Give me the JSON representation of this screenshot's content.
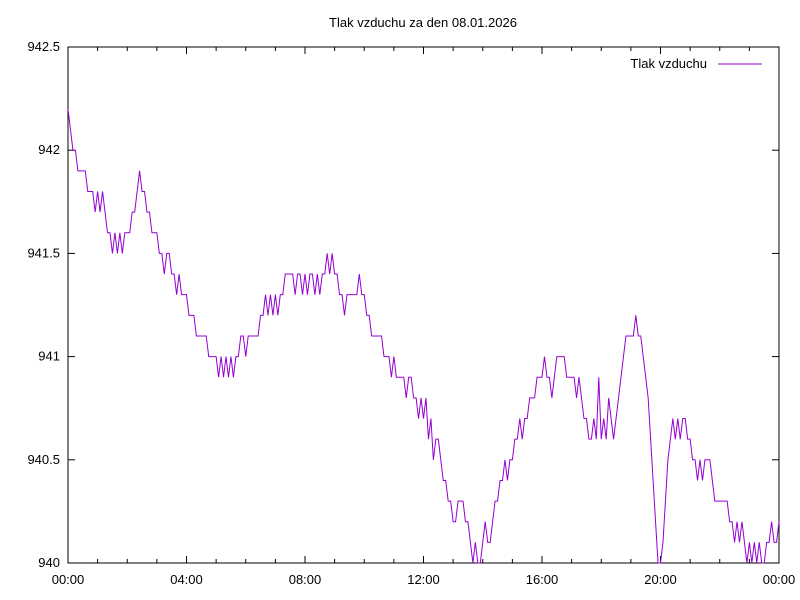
{
  "title": "Tlak vzduchu za den 08.01.2026",
  "legend": {
    "label": "Tlak vzduchu"
  },
  "colors": {
    "line": "#9400d3",
    "axis": "#000000",
    "text": "#000000",
    "background": "#ffffff"
  },
  "chart_data": {
    "type": "line",
    "title": "Tlak vzduchu za den 08.01.2026",
    "series_name": "Tlak vzduchu",
    "xlabel": "",
    "ylabel": "",
    "x_unit": "time-of-day",
    "x_start": "00:00",
    "x_step_minutes": 5,
    "xlim_minutes": [
      0,
      1440
    ],
    "ylim": [
      940,
      942.5
    ],
    "x_tick_labels": [
      "00:00",
      "04:00",
      "08:00",
      "12:00",
      "16:00",
      "20:00",
      "00:00"
    ],
    "x_major_tick_every_minutes": 240,
    "x_minor_tick_every_minutes": 60,
    "y_tick_labels": [
      "940",
      "940.5",
      "941",
      "941.5",
      "942",
      "942.5"
    ],
    "y_tick_step": 0.5,
    "grid": false,
    "legend_position": "top-right-inside",
    "values": [
      942.2,
      942.1,
      942.0,
      942.0,
      941.9,
      941.9,
      941.9,
      941.9,
      941.8,
      941.8,
      941.8,
      941.7,
      941.8,
      941.7,
      941.8,
      941.7,
      941.6,
      941.6,
      941.5,
      941.6,
      941.5,
      941.6,
      941.5,
      941.6,
      941.6,
      941.6,
      941.7,
      941.7,
      941.8,
      941.9,
      941.8,
      941.8,
      941.7,
      941.7,
      941.6,
      941.6,
      941.6,
      941.5,
      941.5,
      941.4,
      941.5,
      941.5,
      941.4,
      941.4,
      941.3,
      941.4,
      941.3,
      941.3,
      941.3,
      941.2,
      941.2,
      941.2,
      941.1,
      941.1,
      941.1,
      941.1,
      941.1,
      941.0,
      941.0,
      941.0,
      941.0,
      940.9,
      941.0,
      940.9,
      941.0,
      940.9,
      941.0,
      940.9,
      941.0,
      941.0,
      941.1,
      941.1,
      941.0,
      941.1,
      941.1,
      941.1,
      941.1,
      941.1,
      941.2,
      941.2,
      941.3,
      941.2,
      941.3,
      941.2,
      941.3,
      941.2,
      941.3,
      941.3,
      941.4,
      941.4,
      941.4,
      941.4,
      941.3,
      941.4,
      941.4,
      941.3,
      941.4,
      941.3,
      941.4,
      941.4,
      941.3,
      941.4,
      941.3,
      941.4,
      941.4,
      941.5,
      941.4,
      941.5,
      941.4,
      941.4,
      941.3,
      941.3,
      941.2,
      941.3,
      941.3,
      941.3,
      941.3,
      941.3,
      941.4,
      941.3,
      941.3,
      941.2,
      941.2,
      941.1,
      941.1,
      941.1,
      941.1,
      941.1,
      941.0,
      941.0,
      941.0,
      940.9,
      941.0,
      940.9,
      940.9,
      940.9,
      940.9,
      940.8,
      940.9,
      940.9,
      940.8,
      940.8,
      940.7,
      940.8,
      940.7,
      940.8,
      940.6,
      940.7,
      940.5,
      940.6,
      940.6,
      940.5,
      940.4,
      940.4,
      940.3,
      940.3,
      940.2,
      940.2,
      940.3,
      940.3,
      940.3,
      940.2,
      940.2,
      940.1,
      940.0,
      940.1,
      940.0,
      940.0,
      940.1,
      940.2,
      940.1,
      940.1,
      940.2,
      940.3,
      940.3,
      940.4,
      940.4,
      940.5,
      940.4,
      940.5,
      940.5,
      940.6,
      940.6,
      940.7,
      940.6,
      940.7,
      940.7,
      940.8,
      940.8,
      940.8,
      940.9,
      940.9,
      940.9,
      941.0,
      940.9,
      940.9,
      940.8,
      940.9,
      941.0,
      941.0,
      941.0,
      941.0,
      940.9,
      940.9,
      940.9,
      940.9,
      940.8,
      940.9,
      940.8,
      940.7,
      940.7,
      940.6,
      940.6,
      940.7,
      940.6,
      940.9,
      940.6,
      940.7,
      940.6,
      940.8,
      940.7,
      940.6,
      940.7,
      940.8,
      940.9,
      941.0,
      941.1,
      941.1,
      941.1,
      941.1,
      941.2,
      941.1,
      941.1,
      941.0,
      940.9,
      940.8,
      940.6,
      940.4,
      940.2,
      940.0,
      940.0,
      940.1,
      940.3,
      940.5,
      940.6,
      940.7,
      940.6,
      940.7,
      940.6,
      940.7,
      940.7,
      940.6,
      940.6,
      940.5,
      940.5,
      940.4,
      940.5,
      940.4,
      940.5,
      940.5,
      940.5,
      940.4,
      940.3,
      940.3,
      940.3,
      940.3,
      940.3,
      940.3,
      940.2,
      940.2,
      940.1,
      940.2,
      940.1,
      940.2,
      940.1,
      940.0,
      940.1,
      940.0,
      940.1,
      940.0,
      940.1,
      940.0,
      940.0,
      940.1,
      940.1,
      940.2,
      940.1,
      940.1,
      940.2
    ]
  }
}
